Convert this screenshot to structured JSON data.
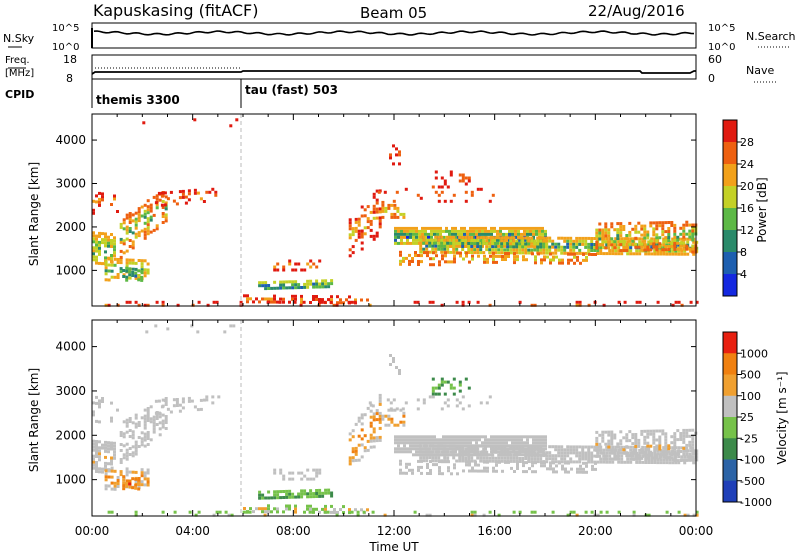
{
  "header": {
    "station": "Kapuskasing (fitACF)",
    "beam": "Beam 05",
    "date": "22/Aug/2016"
  },
  "chart_data": [
    {
      "type": "line",
      "panel": "noise",
      "left_label": "N.Sky",
      "left_ticks": [
        "10^5",
        "10^0"
      ],
      "right_label": "N.Search",
      "right_ticks": [
        "10^5",
        "10^0"
      ]
    },
    {
      "type": "line",
      "panel": "frequency",
      "left_label_1": "Freq.",
      "left_label_2": "[MHz]",
      "left_ticks": [
        "18",
        "8"
      ],
      "right_label": "Nave",
      "right_ticks": [
        "60",
        "0"
      ]
    },
    {
      "type": "table",
      "panel": "cpid",
      "label": "CPID",
      "segments": [
        {
          "name": "themis 3300",
          "start_hour": 0,
          "end_hour": 6
        },
        {
          "name": "tau (fast) 503",
          "start_hour": 6,
          "end_hour": 24
        }
      ]
    },
    {
      "type": "heatmap",
      "panel": "power",
      "ylabel": "Slant Range [km]",
      "yticks": [
        1000,
        2000,
        3000,
        4000
      ],
      "ylim": [
        180,
        4600
      ],
      "colorbar_label": "Power [dB]",
      "colorbar_ticks": [
        "4",
        "8",
        "12",
        "16",
        "20",
        "24",
        "28"
      ],
      "colors": [
        "#1428e0",
        "#1d5fb0",
        "#2a8a6a",
        "#5cb845",
        "#c4d126",
        "#f2a11a",
        "#ee6010",
        "#e01a10"
      ]
    },
    {
      "type": "heatmap",
      "panel": "velocity",
      "ylabel": "Slant Range [km]",
      "yticks": [
        1000,
        2000,
        3000,
        4000
      ],
      "ylim": [
        180,
        4600
      ],
      "colorbar_label": "Velocity [m s⁻¹]",
      "colorbar_ticks": [
        "1000",
        "500",
        "100",
        "25",
        "-25",
        "-100",
        "-500",
        "-1000"
      ],
      "colors": [
        "#1f3fb8",
        "#2b63a6",
        "#3c8a4a",
        "#76c24a",
        "#c0c0c0",
        "#f0a030",
        "#f08010",
        "#e82010"
      ],
      "xlabel": "Time UT",
      "xticks": [
        "00:00",
        "04:00",
        "08:00",
        "12:00",
        "16:00",
        "20:00",
        "00:00"
      ],
      "xlim_hours": [
        0,
        24
      ]
    }
  ]
}
